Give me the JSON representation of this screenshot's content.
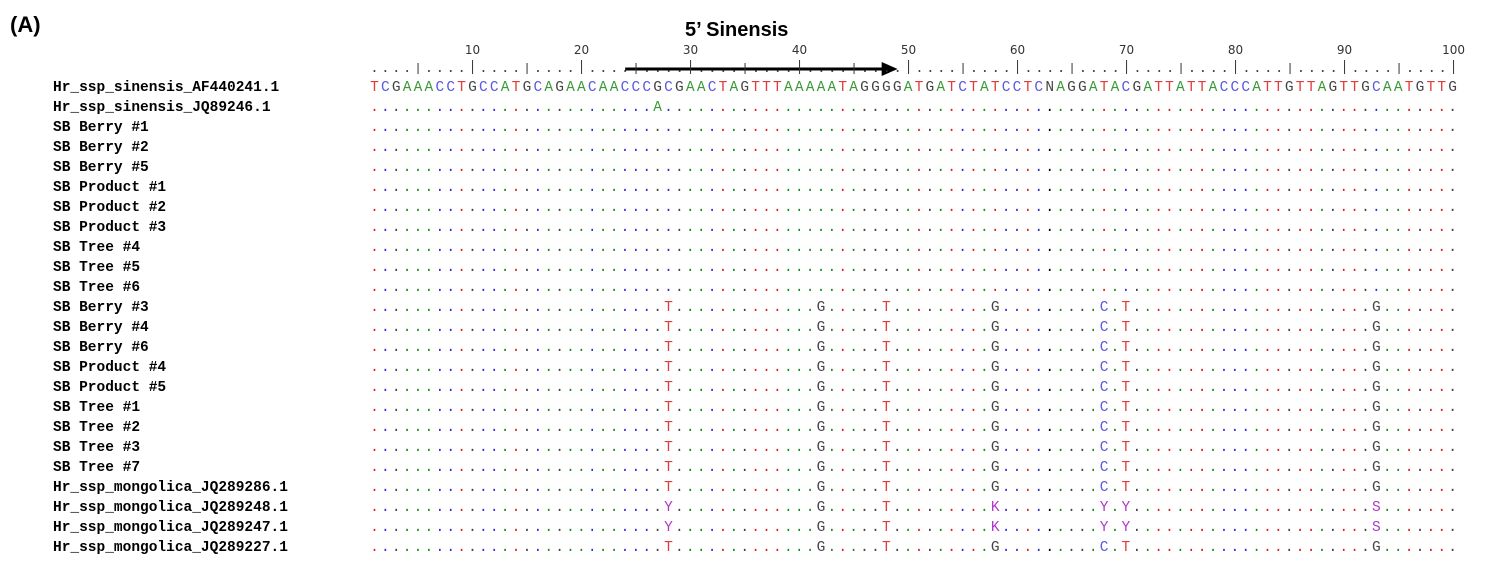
{
  "panel_label": "(A)",
  "primer_label": "5’ Sinensis",
  "ruler": {
    "ticks": [
      "10",
      "20",
      "30",
      "40",
      "50",
      "60",
      "70",
      "80",
      "90",
      "100"
    ],
    "length": 100
  },
  "reference": {
    "name": "Hr_ssp_sinensis_AF440241.1",
    "sequence": "TCGAAACCTGCCATGCAGAACAACCCGCGAACTAGTTTAAAAATAGGGGATGATCTATCCTCNAGGATACGATTATTACCCATTGTTAGTTGCAATGTTG"
  },
  "rows": [
    {
      "name": "Hr_ssp_sinensis_JQ89246.1",
      "diffs": {
        "27": "A"
      }
    },
    {
      "name": "SB Berry #1",
      "diffs": {}
    },
    {
      "name": "SB Berry #2",
      "diffs": {}
    },
    {
      "name": "SB Berry #5",
      "diffs": {}
    },
    {
      "name": "SB Product #1",
      "diffs": {}
    },
    {
      "name": "SB Product #2",
      "diffs": {}
    },
    {
      "name": "SB Product #3",
      "diffs": {}
    },
    {
      "name": "SB Tree #4",
      "diffs": {}
    },
    {
      "name": "SB Tree #5",
      "diffs": {}
    },
    {
      "name": "SB Tree #6",
      "diffs": {}
    },
    {
      "name": "SB Berry #3",
      "diffs": {
        "28": "T",
        "42": "G",
        "48": "T",
        "58": "G",
        "68": "C",
        "70": "T",
        "93": "G"
      }
    },
    {
      "name": "SB Berry #4",
      "diffs": {
        "28": "T",
        "42": "G",
        "48": "T",
        "58": "G",
        "68": "C",
        "70": "T",
        "93": "G"
      }
    },
    {
      "name": "SB Berry #6",
      "diffs": {
        "28": "T",
        "42": "G",
        "48": "T",
        "58": "G",
        "68": "C",
        "70": "T",
        "93": "G"
      }
    },
    {
      "name": "SB Product #4",
      "diffs": {
        "28": "T",
        "42": "G",
        "48": "T",
        "58": "G",
        "68": "C",
        "70": "T",
        "93": "G"
      }
    },
    {
      "name": "SB Product #5",
      "diffs": {
        "28": "T",
        "42": "G",
        "48": "T",
        "58": "G",
        "68": "C",
        "70": "T",
        "93": "G"
      }
    },
    {
      "name": "SB Tree #1",
      "diffs": {
        "28": "T",
        "42": "G",
        "48": "T",
        "58": "G",
        "68": "C",
        "70": "T",
        "93": "G"
      }
    },
    {
      "name": "SB Tree #2",
      "diffs": {
        "28": "T",
        "42": "G",
        "48": "T",
        "58": "G",
        "68": "C",
        "70": "T",
        "93": "G"
      }
    },
    {
      "name": "SB Tree #3",
      "diffs": {
        "28": "T",
        "42": "G",
        "48": "T",
        "58": "G",
        "68": "C",
        "70": "T",
        "93": "G"
      }
    },
    {
      "name": "SB Tree #7",
      "diffs": {
        "28": "T",
        "42": "G",
        "48": "T",
        "58": "G",
        "68": "C",
        "70": "T",
        "93": "G"
      }
    },
    {
      "name": "Hr_ssp_mongolica_JQ289286.1",
      "diffs": {
        "28": "T",
        "42": "G",
        "48": "T",
        "58": "G",
        "68": "C",
        "70": "T",
        "93": "G"
      }
    },
    {
      "name": "Hr_ssp_mongolica_JQ289248.1",
      "diffs": {
        "28": "Y",
        "42": "G",
        "48": "T",
        "58": "K",
        "68": "Y",
        "70": "Y",
        "93": "S"
      }
    },
    {
      "name": "Hr_ssp_mongolica_JQ289247.1",
      "diffs": {
        "28": "Y",
        "42": "G",
        "48": "T",
        "58": "K",
        "68": "Y",
        "70": "Y",
        "93": "S"
      }
    },
    {
      "name": "Hr_ssp_mongolica_JQ289227.1",
      "diffs": {
        "28": "T",
        "42": "G",
        "48": "T",
        "58": "G",
        "68": "C",
        "70": "T",
        "93": "G"
      }
    }
  ],
  "primer": {
    "start": 24,
    "end": 49
  },
  "colors": {
    "A": "#3a9a3a",
    "C": "#5b5bdd",
    "G": "#444444",
    "T": "#e03c3c",
    "ambiguity": "#b036c9"
  }
}
